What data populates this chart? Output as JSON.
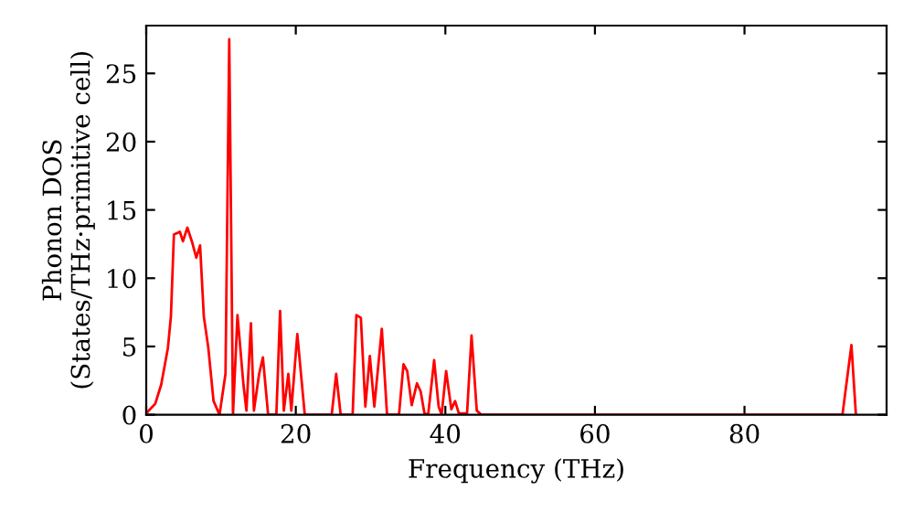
{
  "chart_data": {
    "type": "line",
    "xlabel": "Frequency (THz)",
    "ylabel": "Phonon DOS\n(States/THz·primitive cell)",
    "xlim": [
      0,
      99
    ],
    "ylim": [
      0,
      28.5
    ],
    "xticks": [
      0,
      20,
      40,
      60,
      80
    ],
    "yticks": [
      0,
      5,
      10,
      15,
      20,
      25
    ],
    "grid": false,
    "legend": false,
    "marker": "none",
    "line_style": "solid",
    "series": [
      {
        "color": "#ff0000",
        "x": [
          0,
          1.2,
          2.0,
          2.9,
          3.3,
          3.7,
          4.5,
          4.9,
          5.5,
          6.1,
          6.7,
          7.2,
          7.7,
          8.3,
          9.0,
          9.8,
          10.6,
          11.1,
          11.6,
          12.2,
          13.0,
          13.4,
          14.0,
          14.4,
          15.1,
          15.6,
          16.3,
          17.4,
          17.9,
          18.4,
          19.0,
          19.4,
          20.2,
          21.2,
          24.8,
          25.4,
          26.0,
          27.6,
          28.1,
          28.7,
          29.3,
          29.9,
          30.5,
          31.5,
          32.2,
          33.8,
          34.4,
          34.9,
          35.5,
          36.2,
          36.7,
          37.2,
          37.7,
          38.5,
          39.1,
          39.5,
          40.1,
          40.8,
          41.3,
          41.8,
          42.9,
          43.5,
          44.2,
          44.8,
          93.1,
          94.3,
          94.9
        ],
        "values": [
          0.1,
          0.8,
          2.2,
          4.9,
          7.2,
          13.2,
          13.4,
          12.7,
          13.7,
          12.7,
          11.5,
          12.4,
          7.2,
          4.9,
          1.0,
          0,
          3.0,
          27.5,
          0,
          7.3,
          2.2,
          0.3,
          6.7,
          0.3,
          3.0,
          4.2,
          0,
          0,
          7.6,
          0.3,
          3.0,
          0.3,
          5.9,
          0,
          0,
          3.0,
          0,
          0,
          7.3,
          7.1,
          0.6,
          4.3,
          0.6,
          6.3,
          0,
          0,
          3.7,
          3.2,
          0.7,
          2.3,
          1.7,
          0.1,
          0,
          4.0,
          0.6,
          0,
          3.2,
          0.4,
          1.0,
          0.1,
          0.1,
          5.8,
          0.3,
          0,
          0,
          5.1,
          0
        ]
      }
    ]
  }
}
